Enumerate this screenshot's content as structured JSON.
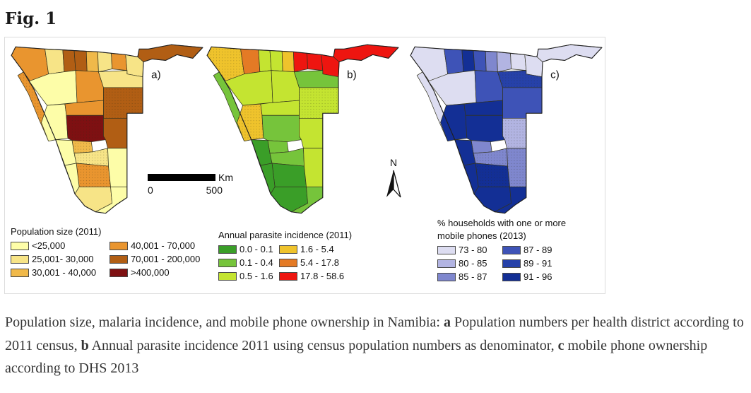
{
  "page": {
    "title": "Fig. 1"
  },
  "figure": {
    "north_label": "N",
    "scale_bar": {
      "start": "0",
      "end": "500",
      "unit": "Km"
    },
    "maps": [
      {
        "id": "a",
        "label": "a)",
        "legend": {
          "title_lines": [
            "Population size (2011)"
          ],
          "items": [
            "<25,000",
            "25,001- 30,000",
            "30,001 - 40,000",
            "40,001 - 70,000",
            "70,001 - 200,000",
            ">400,000"
          ]
        },
        "palette": [
          "#FDFDA8",
          "#F7E487",
          "#F0B94A",
          "#E9952F",
          "#B15E14",
          "#7E1012"
        ],
        "districts": [
          3,
          1,
          4,
          4,
          2,
          1,
          3,
          1,
          4,
          3,
          0,
          3,
          1,
          4,
          0,
          3,
          5,
          4,
          2,
          0,
          1,
          3,
          0,
          0,
          1,
          0
        ],
        "dotted_districts": [
          9,
          13,
          16,
          18,
          20,
          21
        ]
      },
      {
        "id": "b",
        "label": "b)",
        "legend": {
          "title_lines": [
            "Annual parasite incidence (2011)"
          ],
          "items": [
            "0.0 - 0.1",
            "0.1 - 0.4",
            "0.5 - 1.6",
            "1.6 - 5.4",
            "5.4 - 17.8",
            "17.8 - 58.6"
          ]
        },
        "palette": [
          "#3A9E28",
          "#76C43B",
          "#C4E431",
          "#EFC32C",
          "#E47A25",
          "#EE1510"
        ],
        "districts": [
          3,
          4,
          2,
          2,
          3,
          5,
          5,
          5,
          5,
          1,
          2,
          2,
          1,
          2,
          3,
          2,
          1,
          2,
          1,
          0,
          1,
          0,
          2,
          0,
          0,
          1
        ],
        "dotted_districts": [
          0,
          13,
          14
        ]
      },
      {
        "id": "c",
        "label": "c)",
        "legend": {
          "title_lines": [
            "% households with one or more",
            "mobile phones (2013)"
          ],
          "items": [
            "73 - 80",
            "80 - 85",
            "85 - 87",
            "87 - 89",
            "89 - 91",
            "91 - 96"
          ]
        },
        "palette": [
          "#DDDDF1",
          "#B2B4E2",
          "#7F87CE",
          "#3E53B7",
          "#2641A9",
          "#132F95"
        ],
        "districts": [
          0,
          3,
          5,
          3,
          2,
          1,
          0,
          0,
          0,
          0,
          0,
          3,
          4,
          3,
          5,
          5,
          5,
          1,
          2,
          5,
          2,
          5,
          2,
          5,
          5,
          5
        ],
        "dotted_districts": [
          12,
          17,
          20,
          21,
          22
        ]
      }
    ]
  },
  "caption": {
    "segments": [
      {
        "text": "Population size, malaria incidence, and mobile phone ownership in Namibia: ",
        "bold": false
      },
      {
        "text": "a",
        "bold": true
      },
      {
        "text": " Population numbers per health district according to 2011 census, ",
        "bold": false
      },
      {
        "text": "b",
        "bold": true
      },
      {
        "text": " Annual parasite incidence 2011 using census population numbers as denominator, ",
        "bold": false
      },
      {
        "text": "c",
        "bold": true
      },
      {
        "text": " mobile phone ownership according to DHS 2013",
        "bold": false
      }
    ]
  }
}
